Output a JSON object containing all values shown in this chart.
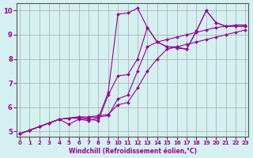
{
  "xlabel": "Windchill (Refroidissement éolien,°C)",
  "bg_color": "#d4f0f0",
  "grid_color": "#aaaaaa",
  "line_color": "#990099",
  "xlim": [
    0,
    23
  ],
  "ylim": [
    5,
    10
  ],
  "xticks": [
    0,
    1,
    2,
    3,
    4,
    5,
    6,
    7,
    8,
    9,
    10,
    11,
    12,
    13,
    14,
    15,
    16,
    17,
    18,
    19,
    20,
    21,
    22,
    23
  ],
  "yticks": [
    5,
    6,
    7,
    8,
    9,
    10
  ],
  "line1_x": [
    0,
    1,
    2,
    3,
    4,
    5,
    6,
    7,
    8,
    9,
    10,
    11,
    12,
    13,
    14,
    15,
    16,
    17,
    18,
    19,
    20,
    21,
    22,
    23
  ],
  "line1_y": [
    4.9,
    5.05,
    5.2,
    5.35,
    5.5,
    5.3,
    5.5,
    5.45,
    5.55,
    6.6,
    9.85,
    9.9,
    10.1,
    9.3,
    8.7,
    8.5,
    8.5,
    8.4,
    9.15,
    10.0,
    9.5,
    9.35,
    9.35,
    9.35
  ],
  "line2_x": [
    0,
    1,
    2,
    3,
    4,
    5,
    6,
    7,
    8,
    9,
    10,
    11,
    12,
    13,
    14,
    15,
    16,
    17,
    18,
    19,
    20,
    21,
    22,
    23
  ],
  "line2_y": [
    4.9,
    5.05,
    5.2,
    5.35,
    5.5,
    5.55,
    5.55,
    5.5,
    5.45,
    6.5,
    7.3,
    7.35,
    8.0,
    9.3,
    8.7,
    8.5,
    8.45,
    8.4,
    9.15,
    10.0,
    9.5,
    9.35,
    9.35,
    9.35
  ],
  "line3_x": [
    0,
    1,
    2,
    3,
    4,
    5,
    6,
    7,
    8,
    9,
    10,
    11,
    12,
    13,
    14,
    15,
    16,
    17,
    18,
    19,
    20,
    21,
    22,
    23
  ],
  "line3_y": [
    4.9,
    5.05,
    5.2,
    5.35,
    5.5,
    5.55,
    5.6,
    5.55,
    5.6,
    5.65,
    6.35,
    6.5,
    7.5,
    8.5,
    8.7,
    8.8,
    8.9,
    9.0,
    9.1,
    9.2,
    9.3,
    9.35,
    9.4,
    9.4
  ],
  "line4_x": [
    0,
    1,
    2,
    3,
    4,
    5,
    6,
    7,
    8,
    9,
    10,
    11,
    12,
    13,
    14,
    15,
    16,
    17,
    18,
    19,
    20,
    21,
    22,
    23
  ],
  "line4_y": [
    4.9,
    5.05,
    5.2,
    5.35,
    5.5,
    5.55,
    5.6,
    5.6,
    5.65,
    5.7,
    6.1,
    6.2,
    6.8,
    7.5,
    8.0,
    8.4,
    8.5,
    8.6,
    8.7,
    8.8,
    8.9,
    9.0,
    9.1,
    9.2
  ]
}
